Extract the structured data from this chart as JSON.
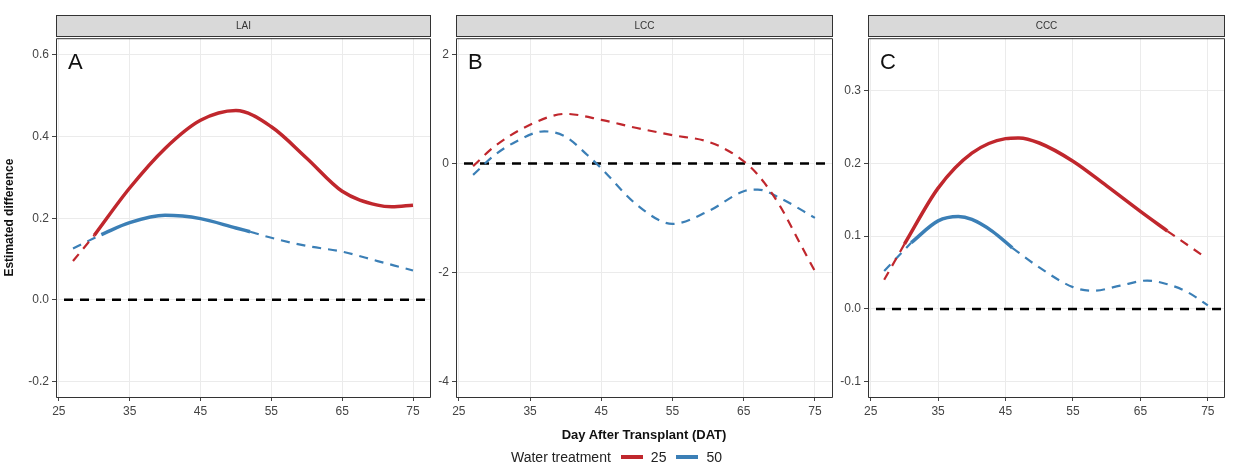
{
  "chart_data": [
    {
      "type": "line",
      "title": "LAI",
      "ylabel": "Estimated difference",
      "annotations": [
        "A"
      ],
      "xlim": [
        24.6,
        77.4
      ],
      "xticks": [
        25,
        35,
        45,
        55,
        65,
        75
      ],
      "ylim": [
        -0.238,
        0.641
      ],
      "yticks": [
        -0.2,
        {
          "value": 0,
          "label": "0.0"
        },
        0.2,
        0.4,
        0.6
      ],
      "grid": true,
      "marker": "none",
      "ref_lines": [
        {
          "axis": "y",
          "value": 0,
          "color": "#000000",
          "line_style": "dashed"
        }
      ],
      "series": [
        {
          "color": "#c0272d",
          "line_style": "dashed",
          "x": [
            27,
            30
          ],
          "values": [
            0.095,
            0.158
          ]
        },
        {
          "color": "#c0272d",
          "line_style": "solid",
          "x": [
            30,
            35,
            40,
            45,
            50,
            55,
            60,
            65,
            70,
            72,
            75
          ],
          "values": [
            0.158,
            0.274,
            0.371,
            0.44,
            0.464,
            0.424,
            0.347,
            0.266,
            0.232,
            0.228,
            0.232
          ]
        },
        {
          "color": "#3b7fb6",
          "line_style": "dashed",
          "x": [
            27,
            31
          ],
          "values": [
            0.126,
            0.16
          ]
        },
        {
          "color": "#3b7fb6",
          "line_style": "solid",
          "x": [
            31,
            35,
            40,
            45,
            50,
            52
          ],
          "values": [
            0.16,
            0.189,
            0.207,
            0.199,
            0.176,
            0.167
          ]
        },
        {
          "color": "#3b7fb6",
          "line_style": "dashed",
          "x": [
            52,
            55,
            60,
            65,
            70,
            75
          ],
          "values": [
            0.167,
            0.152,
            0.132,
            0.118,
            0.095,
            0.072
          ]
        }
      ]
    },
    {
      "type": "line",
      "title": "LCC",
      "xlabel": "Day After Transplant (DAT)",
      "annotations": [
        "B"
      ],
      "legend": "bottom",
      "legend_title": "Water treatment",
      "xlim": [
        24.6,
        77.4
      ],
      "xticks": [
        25,
        35,
        45,
        55,
        65,
        75
      ],
      "ylim": [
        -4.29,
        2.3
      ],
      "yticks": [
        -4,
        -2,
        0,
        2
      ],
      "grid": true,
      "marker": "none",
      "ref_lines": [
        {
          "axis": "y",
          "value": 0,
          "color": "#000000",
          "line_style": "dashed"
        }
      ],
      "series": [
        {
          "name": "25",
          "color": "#c0272d",
          "line_style": "dashed",
          "x": [
            27,
            30,
            35,
            40,
            45,
            50,
            55,
            60,
            63,
            65,
            67,
            70,
            73,
            75
          ],
          "values": [
            -0.05,
            0.31,
            0.71,
            0.91,
            0.8,
            0.65,
            0.52,
            0.4,
            0.22,
            0.04,
            -0.21,
            -0.76,
            -1.49,
            -1.98
          ]
        },
        {
          "name": "50",
          "color": "#3b7fb6",
          "line_style": "dashed",
          "x": [
            27,
            30,
            33,
            37,
            40,
            43,
            45,
            50,
            55,
            60,
            65,
            67,
            70,
            75
          ],
          "values": [
            -0.21,
            0.15,
            0.4,
            0.59,
            0.49,
            0.16,
            -0.09,
            -0.76,
            -1.11,
            -0.88,
            -0.51,
            -0.48,
            -0.63,
            -1.0
          ]
        }
      ]
    },
    {
      "type": "line",
      "title": "CCC",
      "annotations": [
        "C"
      ],
      "xlim": [
        24.6,
        77.4
      ],
      "xticks": [
        25,
        35,
        45,
        55,
        65,
        75
      ],
      "ylim": [
        -0.121,
        0.372
      ],
      "yticks": [
        -0.1,
        {
          "value": 0,
          "label": "0.0"
        },
        0.1,
        0.2,
        0.3
      ],
      "grid": true,
      "marker": "none",
      "ref_lines": [
        {
          "axis": "y",
          "value": 0,
          "color": "#000000",
          "line_style": "dashed"
        }
      ],
      "series": [
        {
          "color": "#c0272d",
          "line_style": "dashed",
          "x": [
            27,
            30
          ],
          "values": [
            0.04,
            0.089
          ]
        },
        {
          "color": "#c0272d",
          "line_style": "solid",
          "x": [
            30,
            35,
            40,
            45,
            47,
            50,
            55,
            60,
            65,
            69
          ],
          "values": [
            0.089,
            0.166,
            0.214,
            0.234,
            0.235,
            0.228,
            0.203,
            0.169,
            0.134,
            0.107
          ]
        },
        {
          "color": "#c0272d",
          "line_style": "dashed",
          "x": [
            69,
            74
          ],
          "values": [
            0.107,
            0.075
          ]
        },
        {
          "color": "#3b7fb6",
          "line_style": "dashed",
          "x": [
            27,
            31
          ],
          "values": [
            0.052,
            0.091
          ]
        },
        {
          "color": "#3b7fb6",
          "line_style": "solid",
          "x": [
            31,
            35,
            38,
            40,
            43,
            46
          ],
          "values": [
            0.091,
            0.121,
            0.127,
            0.123,
            0.107,
            0.084
          ]
        },
        {
          "color": "#3b7fb6",
          "line_style": "dashed",
          "x": [
            46,
            50,
            55,
            58,
            62,
            66,
            69,
            72,
            75
          ],
          "values": [
            0.084,
            0.057,
            0.03,
            0.025,
            0.032,
            0.039,
            0.034,
            0.023,
            0.005
          ]
        }
      ]
    }
  ]
}
